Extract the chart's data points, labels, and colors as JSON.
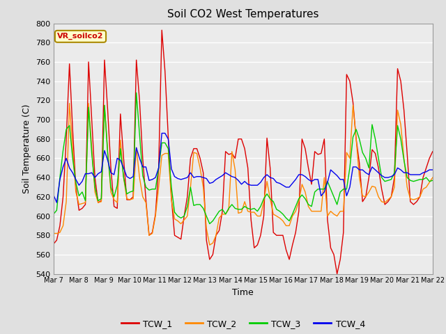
{
  "title": "Soil CO2 West Temperatures",
  "xlabel": "Time",
  "ylabel": "Soil Temperature (C)",
  "ylim": [
    540,
    800
  ],
  "yticks": [
    540,
    560,
    580,
    600,
    620,
    640,
    660,
    680,
    700,
    720,
    740,
    760,
    780,
    800
  ],
  "x_labels": [
    "Mar 7",
    "Mar 8",
    "Mar 9",
    "Mar 10",
    "Mar 11",
    "Mar 12",
    "Mar 13",
    "Mar 14",
    "Mar 15",
    "Mar 16",
    "Mar 17",
    "Mar 18",
    "Mar 19",
    "Mar 20",
    "Mar 21",
    "Mar 22"
  ],
  "annotation_text": "VR_soilco2",
  "annotation_bg": "#ffffcc",
  "annotation_border": "#aa8800",
  "colors": {
    "TCW_1": "#dd0000",
    "TCW_2": "#ff8800",
    "TCW_3": "#00cc00",
    "TCW_4": "#0000ee"
  },
  "bg_color": "#e0e0e0",
  "plot_bg": "#ebebeb",
  "grid_color": "#ffffff",
  "TCW_1": [
    571,
    575,
    590,
    620,
    680,
    758,
    690,
    630,
    606,
    608,
    612,
    760,
    700,
    640,
    614,
    616,
    762,
    710,
    650,
    610,
    608,
    706,
    660,
    617,
    617,
    620,
    762,
    720,
    660,
    617,
    580,
    583,
    602,
    650,
    793,
    750,
    683,
    619,
    580,
    578,
    576,
    600,
    620,
    660,
    670,
    670,
    660,
    645,
    575,
    555,
    560,
    580,
    585,
    605,
    667,
    664,
    665,
    660,
    680,
    680,
    670,
    650,
    596,
    567,
    570,
    580,
    600,
    681,
    650,
    583,
    580,
    580,
    580,
    565,
    555,
    570,
    583,
    605,
    680,
    670,
    650,
    633,
    667,
    664,
    665,
    680,
    596,
    567,
    560,
    540,
    555,
    583,
    747,
    740,
    718,
    680,
    655,
    615,
    620,
    640,
    669,
    665,
    650,
    628,
    612,
    615,
    620,
    640,
    753,
    740,
    710,
    665,
    615,
    612,
    615,
    620,
    640,
    650,
    660,
    667
  ],
  "TCW_2": [
    582,
    582,
    583,
    590,
    615,
    717,
    670,
    625,
    612,
    613,
    614,
    717,
    670,
    625,
    614,
    615,
    715,
    668,
    625,
    617,
    614,
    679,
    640,
    618,
    617,
    618,
    671,
    640,
    620,
    614,
    580,
    582,
    600,
    630,
    663,
    665,
    665,
    617,
    597,
    595,
    592,
    596,
    600,
    630,
    666,
    665,
    650,
    630,
    587,
    570,
    572,
    580,
    598,
    602,
    602,
    607,
    667,
    648,
    603,
    604,
    615,
    605,
    604,
    604,
    600,
    600,
    615,
    636,
    618,
    602,
    600,
    598,
    595,
    590,
    590,
    600,
    605,
    615,
    633,
    625,
    610,
    605,
    605,
    605,
    605,
    640,
    600,
    605,
    602,
    600,
    605,
    605,
    666,
    660,
    715,
    680,
    640,
    621,
    620,
    625,
    631,
    630,
    620,
    615,
    614,
    617,
    620,
    630,
    710,
    695,
    660,
    630,
    618,
    617,
    618,
    620,
    628,
    630,
    635,
    640
  ],
  "TCW_3": [
    602,
    606,
    640,
    668,
    690,
    694,
    660,
    635,
    621,
    625,
    616,
    713,
    665,
    630,
    616,
    618,
    715,
    665,
    630,
    620,
    632,
    670,
    640,
    623,
    625,
    626,
    728,
    685,
    642,
    630,
    627,
    628,
    628,
    650,
    676,
    676,
    670,
    630,
    604,
    600,
    598,
    600,
    610,
    630,
    611,
    612,
    612,
    608,
    600,
    592,
    595,
    600,
    605,
    607,
    602,
    608,
    612,
    608,
    607,
    607,
    610,
    608,
    607,
    608,
    605,
    610,
    618,
    623,
    618,
    615,
    607,
    605,
    602,
    598,
    595,
    602,
    610,
    618,
    622,
    618,
    612,
    610,
    625,
    628,
    628,
    628,
    636,
    628,
    620,
    612,
    625,
    628,
    628,
    650,
    682,
    690,
    680,
    666,
    660,
    650,
    695,
    680,
    660,
    640,
    636,
    637,
    638,
    645,
    694,
    680,
    658,
    640,
    637,
    636,
    637,
    638,
    638,
    640,
    636,
    637
  ],
  "TCW_4": [
    622,
    614,
    638,
    651,
    660,
    650,
    645,
    638,
    632,
    636,
    644,
    644,
    645,
    640,
    644,
    646,
    668,
    658,
    645,
    643,
    660,
    658,
    650,
    641,
    639,
    641,
    671,
    660,
    651,
    651,
    637,
    638,
    640,
    650,
    686,
    686,
    680,
    649,
    641,
    639,
    638,
    639,
    640,
    645,
    640,
    641,
    641,
    640,
    639,
    634,
    635,
    638,
    640,
    642,
    645,
    643,
    641,
    640,
    637,
    633,
    636,
    633,
    632,
    632,
    632,
    635,
    640,
    643,
    640,
    639,
    635,
    634,
    632,
    630,
    630,
    634,
    638,
    643,
    643,
    641,
    638,
    636,
    638,
    638,
    621,
    625,
    635,
    648,
    645,
    642,
    638,
    638,
    621,
    630,
    651,
    651,
    648,
    648,
    645,
    643,
    651,
    648,
    645,
    642,
    640,
    640,
    641,
    643,
    650,
    648,
    645,
    645,
    643,
    643,
    643,
    643,
    645,
    646,
    648,
    648
  ]
}
